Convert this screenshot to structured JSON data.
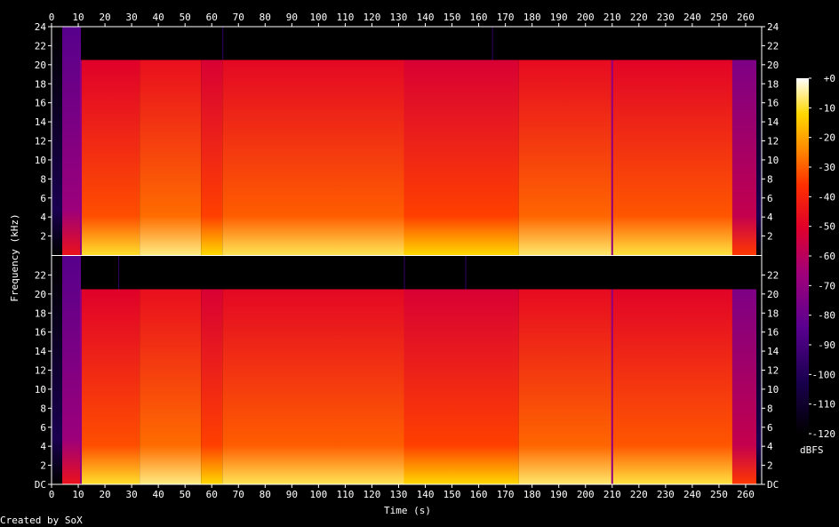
{
  "chart_data": {
    "type": "heatmap",
    "title": "",
    "xlabel": "Time (s)",
    "ylabel": "Frequency (kHz)",
    "colorbar_label": "dBFS",
    "footer": "Created by SoX",
    "xlim": [
      0,
      266
    ],
    "x_ticks": [
      "0",
      "10",
      "20",
      "30",
      "40",
      "50",
      "60",
      "70",
      "80",
      "90",
      "100",
      "110",
      "120",
      "130",
      "140",
      "150",
      "160",
      "170",
      "180",
      "190",
      "200",
      "210",
      "220",
      "230",
      "240",
      "250",
      "260"
    ],
    "ylim": [
      0,
      24
    ],
    "y_ticks_top": [
      "2",
      "4",
      "6",
      "8",
      "10",
      "12",
      "14",
      "16",
      "18",
      "20",
      "22",
      "24"
    ],
    "y_ticks_bottom": [
      "DC",
      "2",
      "4",
      "6",
      "8",
      "10",
      "12",
      "14",
      "16",
      "18",
      "20",
      "22"
    ],
    "colorbar_ticks": [
      "+0",
      "-10",
      "-20",
      "-30",
      "-40",
      "-50",
      "-60",
      "-70",
      "-80",
      "-90",
      "-100",
      "-110",
      "-120"
    ],
    "colorbar_range": [
      -120,
      0
    ],
    "channels": [
      {
        "name": "",
        "cutoff_khz": 20.5,
        "content_start_s": 4,
        "lowpass_start_s": 11,
        "content_end_s": 264,
        "dropouts_s": [
          11,
          210
        ],
        "spikes_s": [
          64,
          165
        ],
        "segments": [
          {
            "start": 0,
            "end": 4,
            "level_db": -120
          },
          {
            "start": 4,
            "end": 11,
            "level_db": -85
          },
          {
            "start": 11,
            "end": 33,
            "level_db": -50
          },
          {
            "start": 33,
            "end": 56,
            "level_db": -46
          },
          {
            "start": 56,
            "end": 64,
            "level_db": -52
          },
          {
            "start": 64,
            "end": 132,
            "level_db": -48
          },
          {
            "start": 132,
            "end": 175,
            "level_db": -52
          },
          {
            "start": 175,
            "end": 210,
            "level_db": -47
          },
          {
            "start": 210,
            "end": 255,
            "level_db": -49
          },
          {
            "start": 255,
            "end": 264,
            "level_db": -75
          },
          {
            "start": 264,
            "end": 266,
            "level_db": -120
          }
        ]
      },
      {
        "name": "",
        "cutoff_khz": 20.5,
        "content_start_s": 4,
        "lowpass_start_s": 11,
        "content_end_s": 264,
        "dropouts_s": [
          11,
          210
        ],
        "spikes_s": [
          25,
          132,
          155
        ],
        "segments": [
          {
            "start": 0,
            "end": 4,
            "level_db": -120
          },
          {
            "start": 4,
            "end": 11,
            "level_db": -85
          },
          {
            "start": 11,
            "end": 33,
            "level_db": -50
          },
          {
            "start": 33,
            "end": 56,
            "level_db": -46
          },
          {
            "start": 56,
            "end": 64,
            "level_db": -52
          },
          {
            "start": 64,
            "end": 132,
            "level_db": -48
          },
          {
            "start": 132,
            "end": 175,
            "level_db": -52
          },
          {
            "start": 175,
            "end": 210,
            "level_db": -47
          },
          {
            "start": 210,
            "end": 255,
            "level_db": -49
          },
          {
            "start": 255,
            "end": 264,
            "level_db": -75
          },
          {
            "start": 264,
            "end": 266,
            "level_db": -120
          }
        ]
      }
    ]
  }
}
